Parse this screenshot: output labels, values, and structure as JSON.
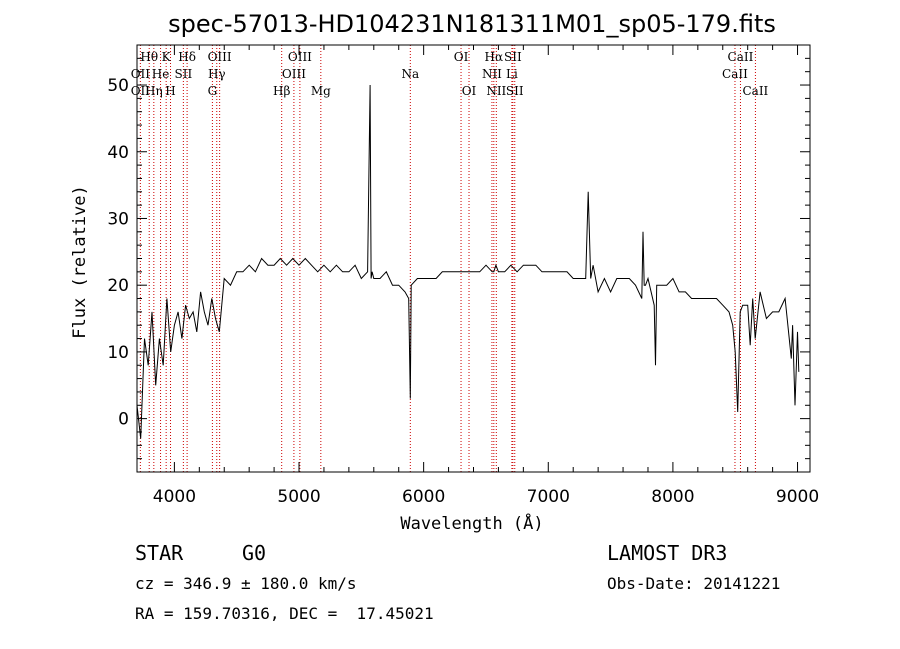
{
  "chart_data": {
    "type": "line",
    "title": "spec-57013-HD104231N181311M01_sp05-179.fits",
    "xlabel": "Wavelength (Å)",
    "ylabel": "Flux (relative)",
    "xlim": [
      3700,
      9100
    ],
    "ylim": [
      -8,
      56
    ],
    "xticks": [
      4000,
      5000,
      6000,
      7000,
      8000,
      9000
    ],
    "yticks": [
      0,
      10,
      20,
      30,
      40,
      50
    ],
    "line_color": "#000000",
    "marker_color": "#cc0000",
    "spectrum": {
      "x": [
        3700,
        3730,
        3760,
        3790,
        3820,
        3850,
        3880,
        3910,
        3940,
        3970,
        4000,
        4030,
        4060,
        4090,
        4120,
        4150,
        4180,
        4210,
        4240,
        4270,
        4300,
        4330,
        4360,
        4400,
        4450,
        4500,
        4550,
        4600,
        4650,
        4700,
        4750,
        4800,
        4850,
        4900,
        4950,
        5000,
        5050,
        5100,
        5150,
        5200,
        5250,
        5300,
        5350,
        5400,
        5450,
        5500,
        5550,
        5570,
        5578,
        5586,
        5600,
        5650,
        5700,
        5750,
        5800,
        5850,
        5880,
        5893,
        5900,
        5950,
        6000,
        6050,
        6100,
        6150,
        6200,
        6250,
        6300,
        6350,
        6400,
        6450,
        6500,
        6550,
        6563,
        6580,
        6600,
        6650,
        6700,
        6750,
        6800,
        6850,
        6900,
        6950,
        7000,
        7050,
        7100,
        7150,
        7200,
        7250,
        7300,
        7320,
        7340,
        7360,
        7400,
        7450,
        7500,
        7550,
        7600,
        7650,
        7700,
        7750,
        7760,
        7770,
        7780,
        7800,
        7850,
        7860,
        7870,
        7900,
        7950,
        8000,
        8050,
        8100,
        8150,
        8200,
        8250,
        8300,
        8350,
        8400,
        8450,
        8480,
        8500,
        8520,
        8540,
        8560,
        8600,
        8620,
        8640,
        8660,
        8700,
        8750,
        8800,
        8850,
        8900,
        8950,
        8960,
        8980,
        9000,
        9010
      ],
      "y": [
        2,
        -3,
        12,
        8,
        16,
        5,
        12,
        8,
        18,
        10,
        14,
        16,
        12,
        17,
        15,
        16,
        13,
        19,
        16,
        14,
        18,
        15,
        13,
        21,
        20,
        22,
        22,
        23,
        22,
        24,
        23,
        23,
        24,
        23,
        24,
        23,
        24,
        23,
        22,
        23,
        22,
        23,
        22,
        22,
        23,
        21,
        22,
        50,
        21,
        22,
        21,
        21,
        22,
        20,
        20,
        19,
        18,
        3,
        20,
        21,
        21,
        21,
        21,
        22,
        22,
        22,
        22,
        22,
        22,
        22,
        23,
        22,
        22,
        23,
        22,
        22,
        23,
        22,
        23,
        23,
        23,
        22,
        22,
        22,
        22,
        22,
        21,
        21,
        21,
        34,
        21,
        23,
        19,
        21,
        19,
        21,
        21,
        21,
        20,
        18,
        28,
        20,
        20,
        21,
        17,
        8,
        20,
        20,
        20,
        21,
        19,
        19,
        18,
        18,
        18,
        18,
        18,
        17,
        16,
        14,
        10,
        1,
        16,
        17,
        17,
        11,
        18,
        12,
        19,
        15,
        16,
        16,
        18,
        9,
        14,
        2,
        13,
        7
      ]
    },
    "spectral_lines": [
      {
        "label": "Hθ",
        "wavelength": 3798,
        "row": 1
      },
      {
        "label": "OII",
        "wavelength": 3727,
        "row": 2
      },
      {
        "label": "OII",
        "wavelength": 3727,
        "row": 3
      },
      {
        "label": "He",
        "wavelength": 3889,
        "row": 2
      },
      {
        "label": "Hη",
        "wavelength": 3835,
        "row": 3
      },
      {
        "label": "K",
        "wavelength": 3934,
        "row": 1
      },
      {
        "label": "H",
        "wavelength": 3969,
        "row": 3
      },
      {
        "label": "Hδ",
        "wavelength": 4102,
        "row": 1
      },
      {
        "label": "SII",
        "wavelength": 4072,
        "row": 2
      },
      {
        "label": "OIII",
        "wavelength": 4363,
        "row": 1
      },
      {
        "label": "Hγ",
        "wavelength": 4340,
        "row": 2
      },
      {
        "label": "G",
        "wavelength": 4305,
        "row": 3
      },
      {
        "label": "OIII",
        "wavelength": 5007,
        "row": 1
      },
      {
        "label": "OIII",
        "wavelength": 4959,
        "row": 2
      },
      {
        "label": "Hβ",
        "wavelength": 4861,
        "row": 3
      },
      {
        "label": "Mg",
        "wavelength": 5175,
        "row": 3
      },
      {
        "label": "Na",
        "wavelength": 5893,
        "row": 2
      },
      {
        "label": "OI",
        "wavelength": 6300,
        "row": 1
      },
      {
        "label": "OI",
        "wavelength": 6364,
        "row": 3
      },
      {
        "label": "Hα",
        "wavelength": 6563,
        "row": 1
      },
      {
        "label": "NII",
        "wavelength": 6548,
        "row": 2
      },
      {
        "label": "NII",
        "wavelength": 6583,
        "row": 3
      },
      {
        "label": "SII",
        "wavelength": 6716,
        "row": 1
      },
      {
        "label": "Li",
        "wavelength": 6708,
        "row": 2
      },
      {
        "label": "SII",
        "wavelength": 6731,
        "row": 3
      },
      {
        "label": "CaII",
        "wavelength": 8542,
        "row": 1
      },
      {
        "label": "CaII",
        "wavelength": 8498,
        "row": 2
      },
      {
        "label": "CaII",
        "wavelength": 8662,
        "row": 3
      }
    ]
  },
  "info": {
    "class": "STAR",
    "subclass": "G0",
    "survey": "LAMOST DR3",
    "cz": "cz = 346.9 ± 180.0 km/s",
    "obs_date": "Obs-Date: 20141221",
    "coords": "RA = 159.70316, DEC =  17.45021"
  }
}
